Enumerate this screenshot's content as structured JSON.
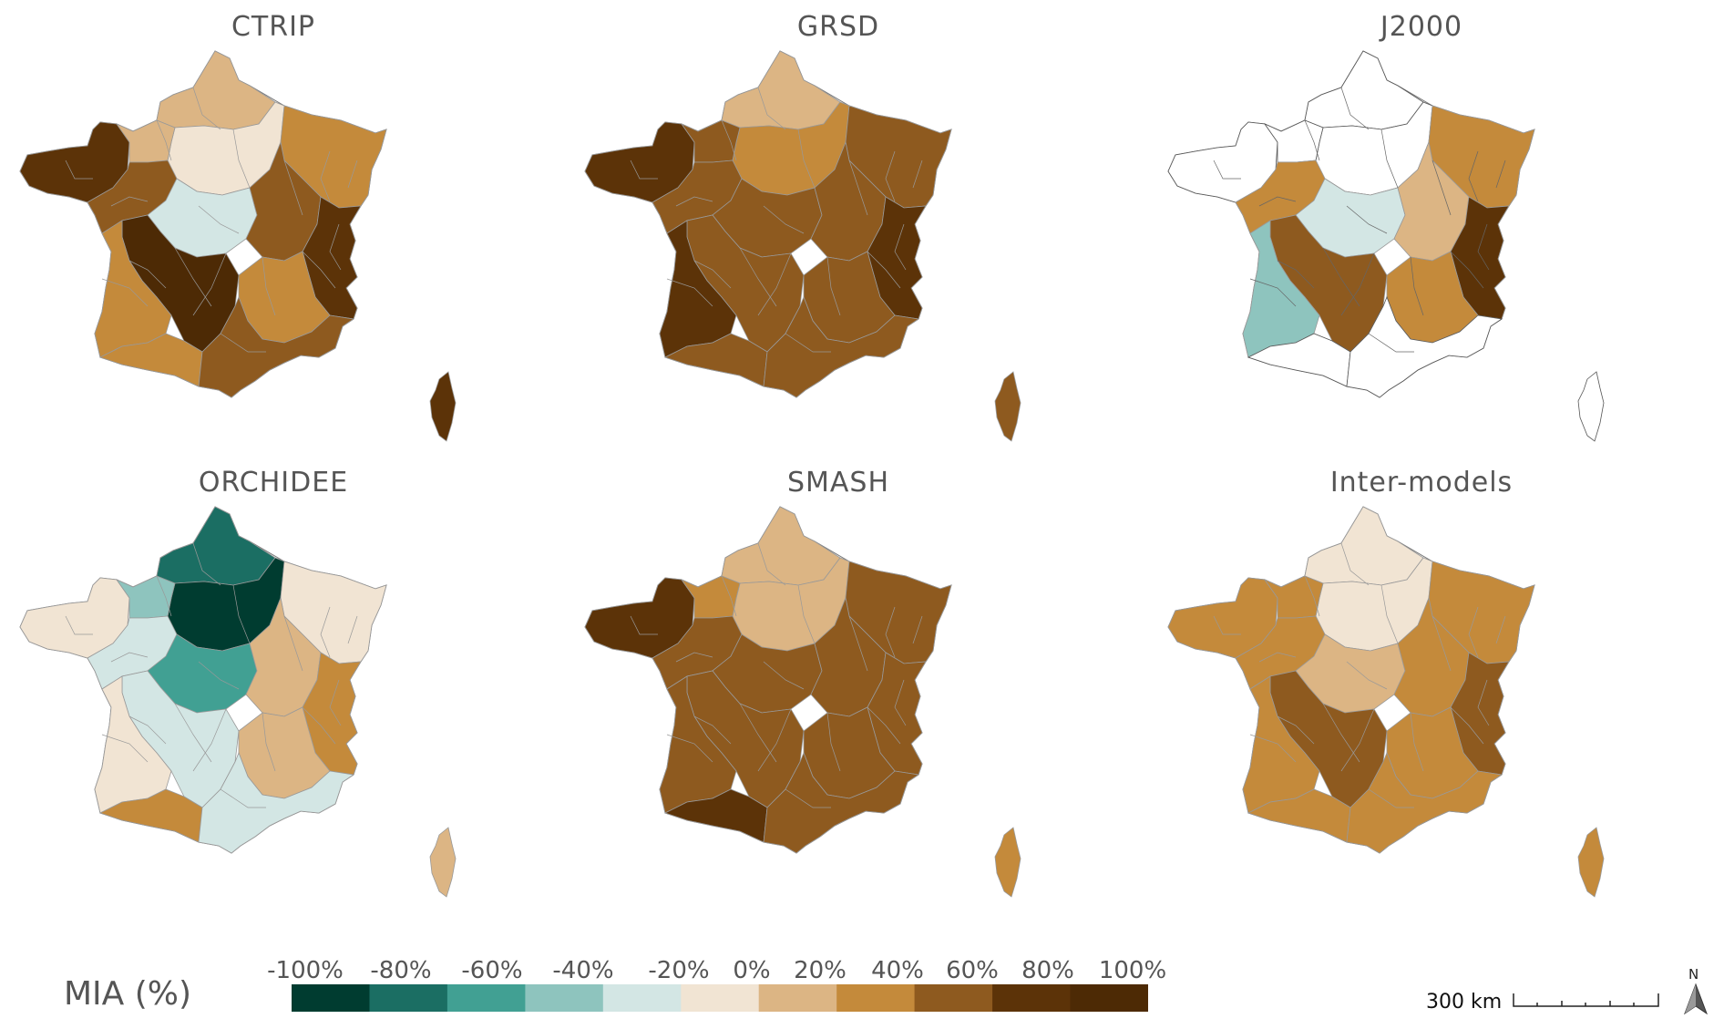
{
  "panels": [
    {
      "title": "CTRIP"
    },
    {
      "title": "GRSD"
    },
    {
      "title": "J2000"
    },
    {
      "title": "ORCHIDEE"
    },
    {
      "title": "SMASH"
    },
    {
      "title": "Inter-models"
    }
  ],
  "legend": {
    "title": "MIA (%)",
    "ticks": [
      "-100%",
      "-80%",
      "-60%",
      "-40%",
      "-20%",
      "0%",
      "20%",
      "40%",
      "60%",
      "80%",
      "100%"
    ],
    "colors": [
      "#003c30",
      "#1b6e63",
      "#41a093",
      "#8ec4be",
      "#d3e6e4",
      "#f1e4d3",
      "#dcb584",
      "#c48a3b",
      "#8e5a1f",
      "#5c3308",
      "#4d2a05"
    ]
  },
  "scale_bar": {
    "label": "300 km"
  },
  "north_arrow": {
    "label": "N"
  },
  "colors": {
    "boundary": "#999999",
    "outline": "#777777",
    "empty": "#ffffff"
  }
}
